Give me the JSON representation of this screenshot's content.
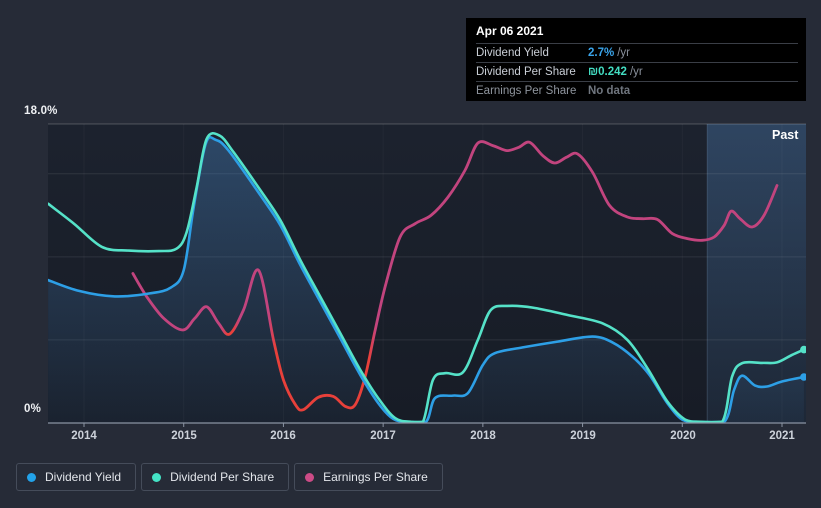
{
  "past_label": "Past",
  "tooltip": {
    "date": "Apr 06 2021",
    "rows": [
      {
        "label": "Dividend Yield",
        "value": "2.7%",
        "suffix": "/yr",
        "label_color": "#c9ced6",
        "value_color": "#3aa4ea"
      },
      {
        "label": "Dividend Per Share",
        "value": "₪0.242",
        "suffix": "/yr",
        "label_color": "#c9ced6",
        "value_color": "#43ddc2"
      },
      {
        "label": "Earnings Per Share",
        "value": "No data",
        "suffix": "",
        "label_color": "#8f959e",
        "value_color": "#70767f"
      }
    ]
  },
  "legend": [
    {
      "label": "Dividend Yield",
      "color": "#22a2e9"
    },
    {
      "label": "Dividend Per Share",
      "color": "#44e3c6"
    },
    {
      "label": "Earnings Per Share",
      "color": "#cc4b86"
    }
  ],
  "colors": {
    "dividend_yield": "#2d9fe6",
    "dividend_per_share": "#55e2c8",
    "earnings_per_share": "#c2447e",
    "eps_negative": "#e8403a",
    "area_fill": "#5096dc",
    "past_panel": "#5a96d7",
    "plot_bg_top": "#1c222e",
    "plot_bg_bottom": "#171c26",
    "grid": "rgba(255,255,255,0.09)",
    "grid_top": "rgba(255,255,255,0.22)",
    "axis_line": "#8a93a2",
    "past_boundary": "rgba(150,185,225,0.22)"
  },
  "chart_data": {
    "type": "line",
    "title": "",
    "x_axis": {
      "ticks": [
        "2014",
        "2015",
        "2016",
        "2017",
        "2018",
        "2019",
        "2020",
        "2021"
      ],
      "range_years": [
        2013.58,
        2021.27
      ]
    },
    "y_axis": {
      "top_label": "18.0%",
      "bottom_label": "0%",
      "ylim": [
        0,
        18
      ],
      "unit": "%",
      "gridlines_pct": [
        5,
        10,
        15
      ]
    },
    "past_boundary_year": 2020.25,
    "series": [
      {
        "name": "Dividend Yield",
        "color": "#2d9fe6",
        "area_fill": true,
        "end_dot": true,
        "points": [
          [
            2013.64,
            8.6
          ],
          [
            2013.95,
            7.95
          ],
          [
            2014.31,
            7.62
          ],
          [
            2014.66,
            7.8
          ],
          [
            2014.87,
            8.15
          ],
          [
            2015.0,
            9.2
          ],
          [
            2015.1,
            13.0
          ],
          [
            2015.22,
            16.8
          ],
          [
            2015.32,
            17.05
          ],
          [
            2015.45,
            16.4
          ],
          [
            2015.77,
            13.7
          ],
          [
            2015.97,
            11.9
          ],
          [
            2016.17,
            9.5
          ],
          [
            2016.37,
            7.3
          ],
          [
            2016.57,
            5.1
          ],
          [
            2016.77,
            2.9
          ],
          [
            2016.95,
            1.2
          ],
          [
            2017.1,
            0.25
          ],
          [
            2017.25,
            0.07
          ],
          [
            2017.43,
            0.07
          ],
          [
            2017.52,
            1.5
          ],
          [
            2017.7,
            1.65
          ],
          [
            2017.85,
            1.8
          ],
          [
            2018.0,
            3.5
          ],
          [
            2018.12,
            4.2
          ],
          [
            2018.4,
            4.55
          ],
          [
            2018.75,
            4.9
          ],
          [
            2019.1,
            5.2
          ],
          [
            2019.3,
            4.85
          ],
          [
            2019.5,
            4.0
          ],
          [
            2019.67,
            2.9
          ],
          [
            2019.85,
            1.2
          ],
          [
            2020.0,
            0.2
          ],
          [
            2020.15,
            0.07
          ],
          [
            2020.42,
            0.07
          ],
          [
            2020.52,
            2.0
          ],
          [
            2020.6,
            2.85
          ],
          [
            2020.73,
            2.25
          ],
          [
            2020.85,
            2.2
          ],
          [
            2021.0,
            2.5
          ],
          [
            2021.22,
            2.77
          ]
        ]
      },
      {
        "name": "Dividend Per Share",
        "color": "#55e2c8",
        "area_fill": false,
        "end_dot": true,
        "points": [
          [
            2013.64,
            13.2
          ],
          [
            2013.9,
            12.0
          ],
          [
            2014.18,
            10.6
          ],
          [
            2014.45,
            10.38
          ],
          [
            2014.75,
            10.35
          ],
          [
            2014.93,
            10.5
          ],
          [
            2015.03,
            11.5
          ],
          [
            2015.13,
            14.2
          ],
          [
            2015.23,
            17.1
          ],
          [
            2015.36,
            17.3
          ],
          [
            2015.5,
            16.3
          ],
          [
            2015.77,
            14.0
          ],
          [
            2015.97,
            12.2
          ],
          [
            2016.17,
            9.8
          ],
          [
            2016.37,
            7.6
          ],
          [
            2016.57,
            5.4
          ],
          [
            2016.77,
            3.2
          ],
          [
            2016.95,
            1.5
          ],
          [
            2017.12,
            0.3
          ],
          [
            2017.28,
            0.07
          ],
          [
            2017.4,
            0.07
          ],
          [
            2017.5,
            2.6
          ],
          [
            2017.62,
            3.0
          ],
          [
            2017.8,
            3.05
          ],
          [
            2017.95,
            5.0
          ],
          [
            2018.08,
            6.8
          ],
          [
            2018.25,
            7.05
          ],
          [
            2018.5,
            6.95
          ],
          [
            2018.85,
            6.5
          ],
          [
            2019.2,
            6.0
          ],
          [
            2019.45,
            5.0
          ],
          [
            2019.65,
            3.3
          ],
          [
            2019.85,
            1.3
          ],
          [
            2020.03,
            0.2
          ],
          [
            2020.18,
            0.07
          ],
          [
            2020.4,
            0.07
          ],
          [
            2020.5,
            2.8
          ],
          [
            2020.6,
            3.6
          ],
          [
            2020.8,
            3.62
          ],
          [
            2020.95,
            3.65
          ],
          [
            2021.1,
            4.1
          ],
          [
            2021.22,
            4.42
          ]
        ]
      },
      {
        "name": "Earnings Per Share",
        "color": "#c2447e",
        "negative_color": "#e8403a",
        "red_ranges": [
          [
            2015.41,
            2015.52
          ],
          [
            2015.89,
            2016.89
          ]
        ],
        "area_fill": false,
        "end_dot": false,
        "points": [
          [
            2014.49,
            9.0
          ],
          [
            2014.63,
            7.6
          ],
          [
            2014.8,
            6.3
          ],
          [
            2014.99,
            5.6
          ],
          [
            2015.11,
            6.3
          ],
          [
            2015.23,
            7.0
          ],
          [
            2015.35,
            6.0
          ],
          [
            2015.46,
            5.35
          ],
          [
            2015.6,
            6.8
          ],
          [
            2015.75,
            9.2
          ],
          [
            2015.9,
            5.0
          ],
          [
            2016.0,
            2.6
          ],
          [
            2016.12,
            1.1
          ],
          [
            2016.2,
            0.8
          ],
          [
            2016.35,
            1.55
          ],
          [
            2016.5,
            1.6
          ],
          [
            2016.62,
            1.0
          ],
          [
            2016.72,
            1.1
          ],
          [
            2016.82,
            2.8
          ],
          [
            2016.92,
            5.6
          ],
          [
            2017.02,
            8.2
          ],
          [
            2017.17,
            11.2
          ],
          [
            2017.32,
            12.0
          ],
          [
            2017.48,
            12.5
          ],
          [
            2017.65,
            13.6
          ],
          [
            2017.82,
            15.2
          ],
          [
            2017.95,
            16.85
          ],
          [
            2018.1,
            16.7
          ],
          [
            2018.24,
            16.4
          ],
          [
            2018.36,
            16.6
          ],
          [
            2018.47,
            16.9
          ],
          [
            2018.6,
            16.1
          ],
          [
            2018.72,
            15.65
          ],
          [
            2018.84,
            16.0
          ],
          [
            2018.95,
            16.2
          ],
          [
            2019.1,
            15.1
          ],
          [
            2019.27,
            13.1
          ],
          [
            2019.45,
            12.4
          ],
          [
            2019.6,
            12.3
          ],
          [
            2019.75,
            12.25
          ],
          [
            2019.9,
            11.4
          ],
          [
            2020.05,
            11.1
          ],
          [
            2020.2,
            11.0
          ],
          [
            2020.32,
            11.2
          ],
          [
            2020.42,
            11.9
          ],
          [
            2020.49,
            12.75
          ],
          [
            2020.58,
            12.3
          ],
          [
            2020.7,
            11.8
          ],
          [
            2020.82,
            12.5
          ],
          [
            2020.95,
            14.3
          ]
        ]
      }
    ]
  }
}
